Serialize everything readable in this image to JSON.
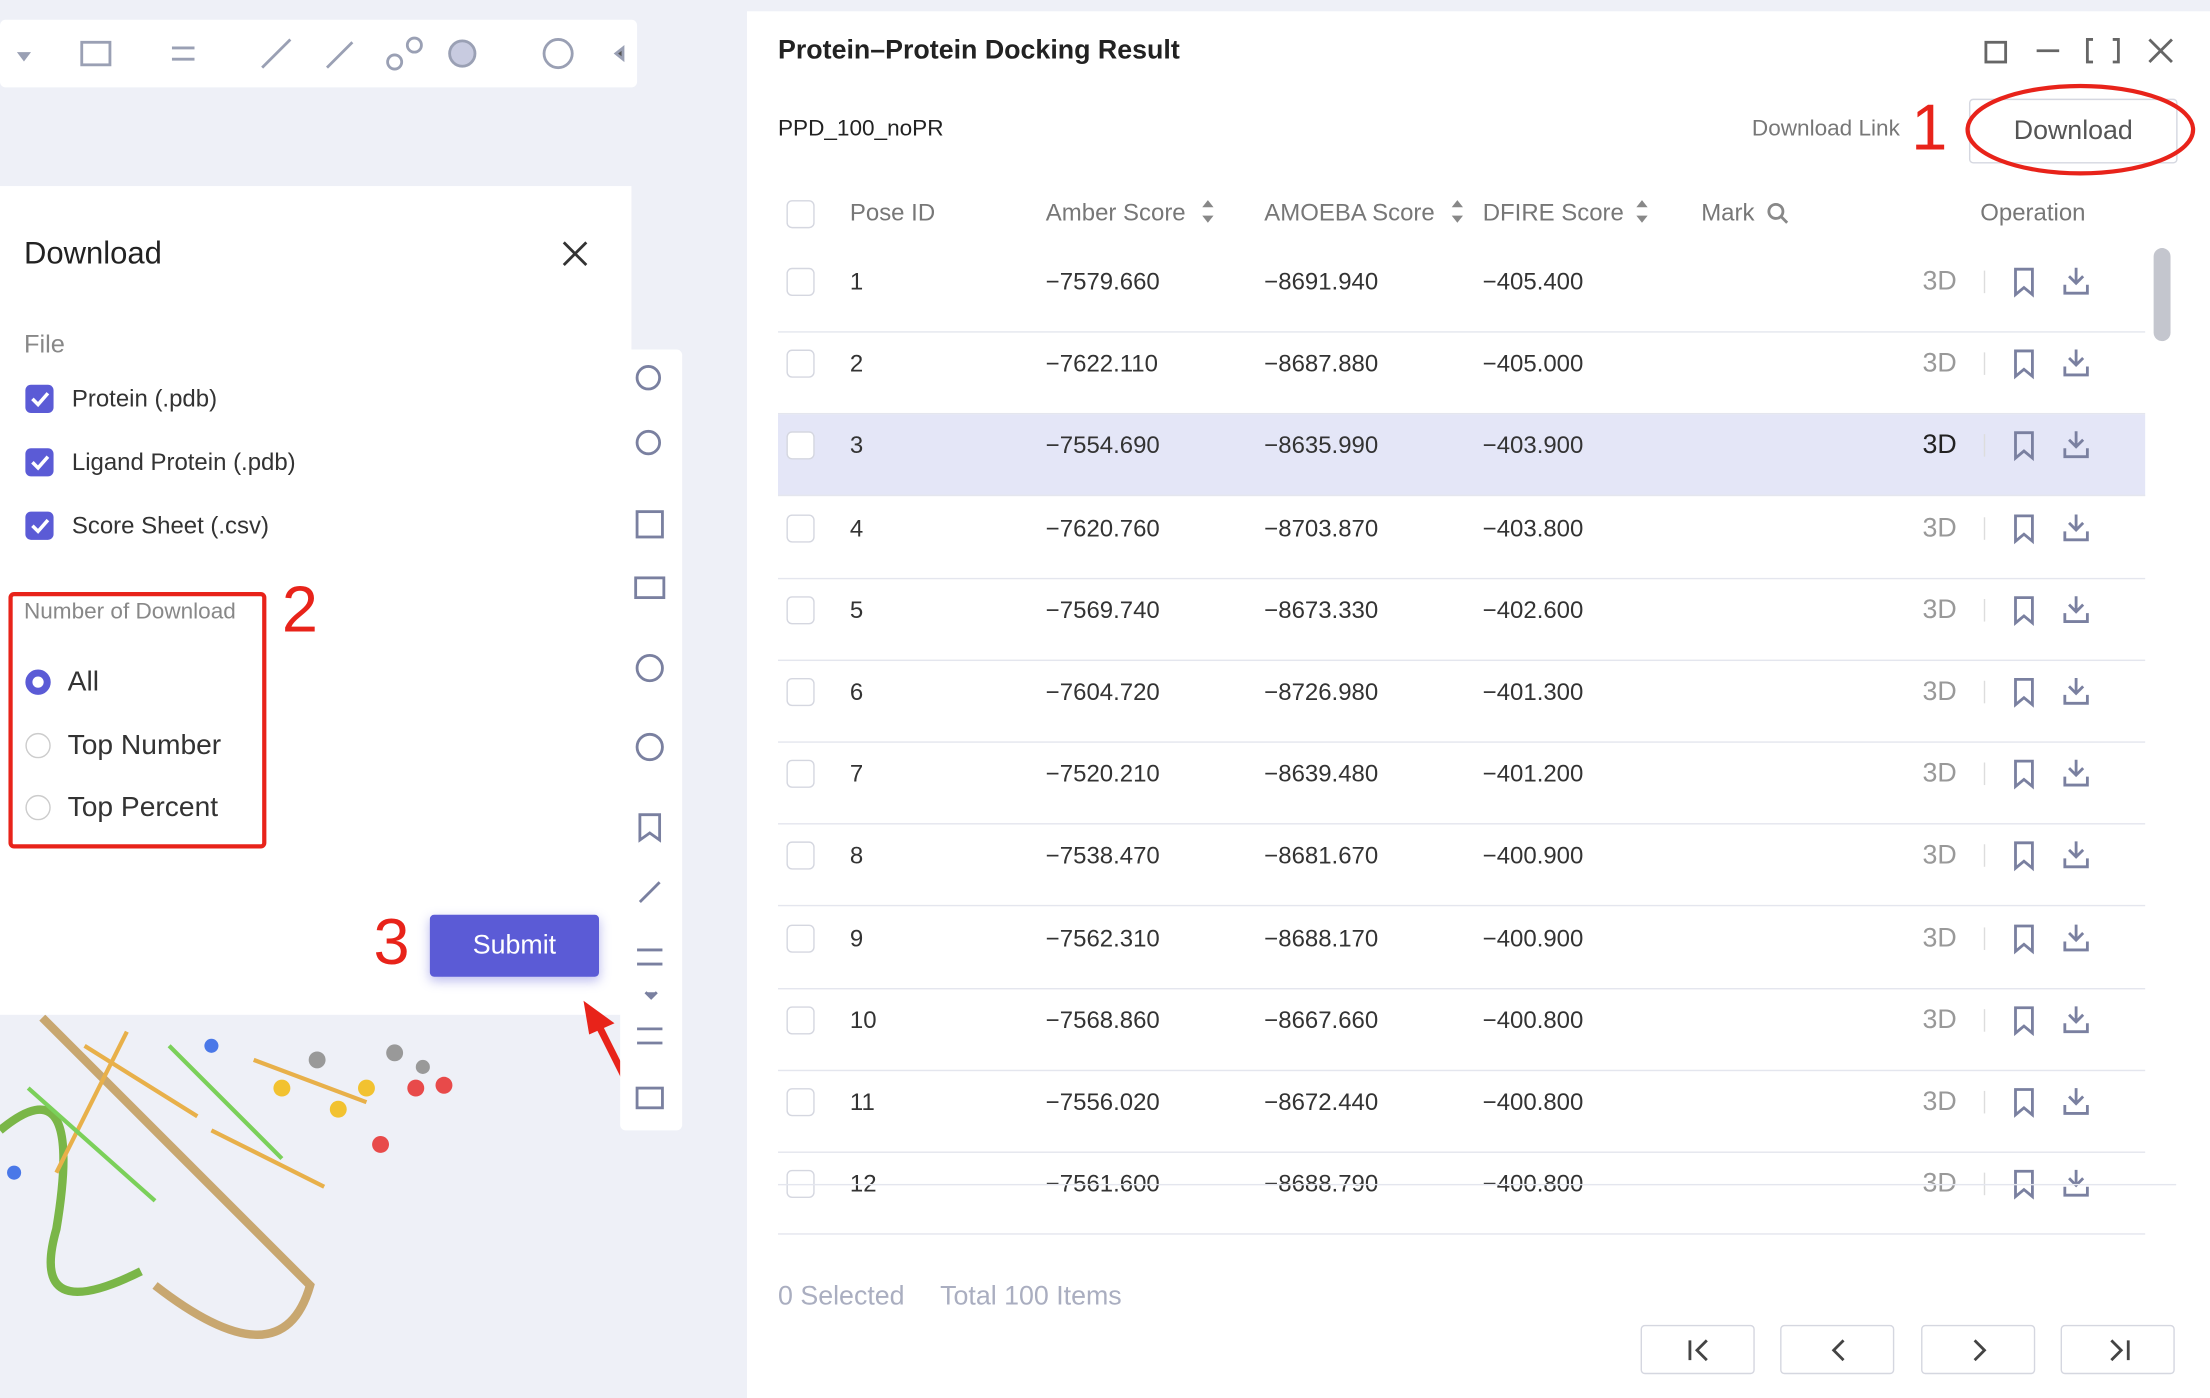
{
  "dialog": {
    "title": "Download",
    "file_section": "File",
    "files": [
      "Protein (.pdb)",
      "Ligand Protein (.pdb)",
      "Score Sheet (.csv)"
    ],
    "number_section": "Number of Download",
    "options": [
      "All",
      "Top Number",
      "Top Percent"
    ],
    "submit": "Submit"
  },
  "annotations": [
    "1",
    "2",
    "3"
  ],
  "panel": {
    "title": "Protein–Protein Docking Result",
    "job": "PPD_100_noPR",
    "download_link": "Download Link",
    "download_button": "Download",
    "headers": [
      "Pose ID",
      "Amber Score",
      "AMOEBA Score",
      "DFIRE Score",
      "Mark",
      "Operation"
    ],
    "operation_label": "3D",
    "rows": [
      [
        "1",
        "−7579.660",
        "−8691.940",
        "−405.400"
      ],
      [
        "2",
        "−7622.110",
        "−8687.880",
        "−405.000"
      ],
      [
        "3",
        "−7554.690",
        "−8635.990",
        "−403.900"
      ],
      [
        "4",
        "−7620.760",
        "−8703.870",
        "−403.800"
      ],
      [
        "5",
        "−7569.740",
        "−8673.330",
        "−402.600"
      ],
      [
        "6",
        "−7604.720",
        "−8726.980",
        "−401.300"
      ],
      [
        "7",
        "−7520.210",
        "−8639.480",
        "−401.200"
      ],
      [
        "8",
        "−7538.470",
        "−8681.670",
        "−400.900"
      ],
      [
        "9",
        "−7562.310",
        "−8688.170",
        "−400.900"
      ],
      [
        "10",
        "−7568.860",
        "−8667.660",
        "−400.800"
      ],
      [
        "11",
        "−7556.020",
        "−8672.440",
        "−400.800"
      ],
      [
        "12",
        "−7561.600",
        "−8688.790",
        "−400.800"
      ]
    ],
    "selected": "0 Selected",
    "total": "Total 100 Items"
  }
}
